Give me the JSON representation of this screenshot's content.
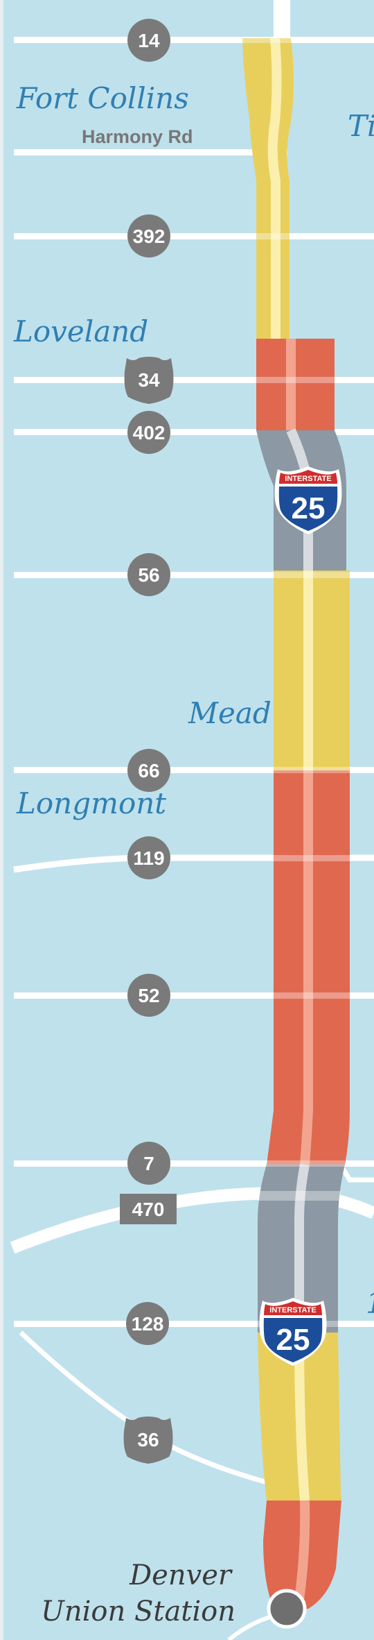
{
  "colors": {
    "water_bg": "#bfe1ec",
    "congestion_moderate": "#e8cf5c",
    "congestion_heavy": "#e0684f",
    "freeflow_segment": "#8c98a3",
    "marker_gray": "#7a7a7a",
    "city_label": "#2f7fb2",
    "destination_label": "#3b3b3b",
    "interstate_blue": "#1c4d9a",
    "interstate_red": "#cf2e2e"
  },
  "cities": {
    "fort_collins": "Fort Collins",
    "loveland": "Loveland",
    "mead": "Mead",
    "longmont": "Longmont"
  },
  "edge_labels": {
    "top_right": "Ti",
    "bottom_right": "1"
  },
  "roads": {
    "harmony": "Harmony Rd",
    "h14": "14",
    "h392": "392",
    "h34": "34",
    "h402": "402",
    "h56": "56",
    "h66": "66",
    "h119": "119",
    "h52": "52",
    "h7": "7",
    "h470": "470",
    "h128": "128",
    "h36": "36"
  },
  "interstate": {
    "top_text": "INTERSTATE",
    "number": "25",
    "icon": "interstate-25-shield-icon"
  },
  "destination": {
    "line1": "Denver",
    "line2": "Union Station",
    "icon": "station-dot-icon"
  }
}
